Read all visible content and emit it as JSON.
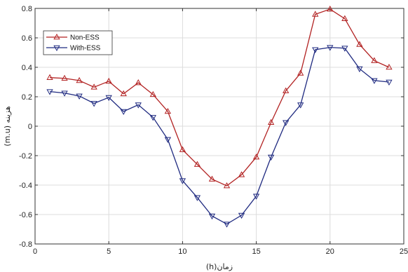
{
  "chart_data": {
    "type": "line",
    "title": "",
    "xlabel": "(h)زمان",
    "ylabel": "(m.u) هزینه",
    "xlim": [
      0,
      25
    ],
    "ylim": [
      -0.8,
      0.8
    ],
    "x_ticks": [
      0,
      5,
      10,
      15,
      20,
      25
    ],
    "y_ticks": [
      -0.8,
      -0.6,
      -0.4,
      -0.2,
      0,
      0.2,
      0.4,
      0.6,
      0.8
    ],
    "x_tick_labels": [
      "0",
      "5",
      "10",
      "15",
      "20",
      "25"
    ],
    "y_tick_labels": [
      "-0.8",
      "-0.6",
      "-0.4",
      "-0.2",
      "0",
      "0.2",
      "0.4",
      "0.6",
      "0.8"
    ],
    "grid": true,
    "legend_position": "top-left",
    "x": [
      1,
      2,
      3,
      4,
      5,
      6,
      7,
      8,
      9,
      10,
      11,
      12,
      13,
      14,
      15,
      16,
      17,
      18,
      19,
      20,
      21,
      22,
      23,
      24
    ],
    "series": [
      {
        "name": "Non-ESS",
        "color": "#b22222",
        "marker": "triangle-up",
        "values": [
          0.33,
          0.325,
          0.31,
          0.265,
          0.305,
          0.22,
          0.295,
          0.215,
          0.1,
          -0.16,
          -0.26,
          -0.36,
          -0.405,
          -0.33,
          -0.21,
          0.025,
          0.24,
          0.36,
          0.76,
          0.795,
          0.73,
          0.555,
          0.445,
          0.4
        ]
      },
      {
        "name": "With-ESS",
        "color": "#1f2a80",
        "marker": "triangle-down",
        "values": [
          0.235,
          0.225,
          0.205,
          0.155,
          0.195,
          0.1,
          0.145,
          0.06,
          -0.09,
          -0.37,
          -0.485,
          -0.61,
          -0.665,
          -0.605,
          -0.475,
          -0.21,
          0.025,
          0.145,
          0.52,
          0.535,
          0.53,
          0.39,
          0.31,
          0.3
        ]
      }
    ]
  }
}
